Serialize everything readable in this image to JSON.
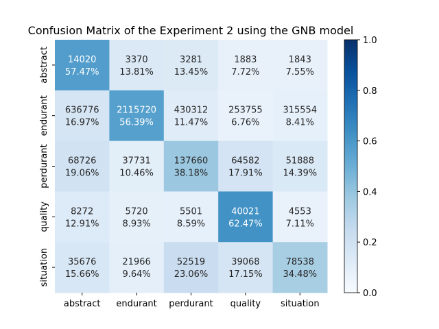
{
  "chart_data": {
    "type": "heatmap",
    "title": "Confusion Matrix of the Experiment 2 using the GNB model",
    "xlabel": "",
    "ylabel": "",
    "x_categories": [
      "abstract",
      "endurant",
      "perdurant",
      "quality",
      "situation"
    ],
    "y_categories": [
      "abstract",
      "endurant",
      "perdurant",
      "quality",
      "situation"
    ],
    "counts": [
      [
        14020,
        3370,
        3281,
        1883,
        1843
      ],
      [
        636776,
        2115720,
        430312,
        253755,
        315554
      ],
      [
        68726,
        37731,
        137660,
        64582,
        51888
      ],
      [
        8272,
        5720,
        5501,
        40021,
        4553
      ],
      [
        35676,
        21966,
        52519,
        39068,
        78538
      ]
    ],
    "percent_labels": [
      [
        "57.47%",
        "13.81%",
        "13.45%",
        "7.72%",
        "7.55%"
      ],
      [
        "16.97%",
        "56.39%",
        "11.47%",
        "6.76%",
        "8.41%"
      ],
      [
        "19.06%",
        "10.46%",
        "38.18%",
        "17.91%",
        "14.39%"
      ],
      [
        "12.91%",
        "8.93%",
        "8.59%",
        "62.47%",
        "7.11%"
      ],
      [
        "15.66%",
        "9.64%",
        "23.06%",
        "17.15%",
        "34.48%"
      ]
    ],
    "colorbar": {
      "range": [
        0.0,
        1.0
      ],
      "ticks": [
        "0.0",
        "0.2",
        "0.4",
        "0.6",
        "0.8",
        "1.0"
      ],
      "colormap": "Blues"
    },
    "grid": false
  }
}
